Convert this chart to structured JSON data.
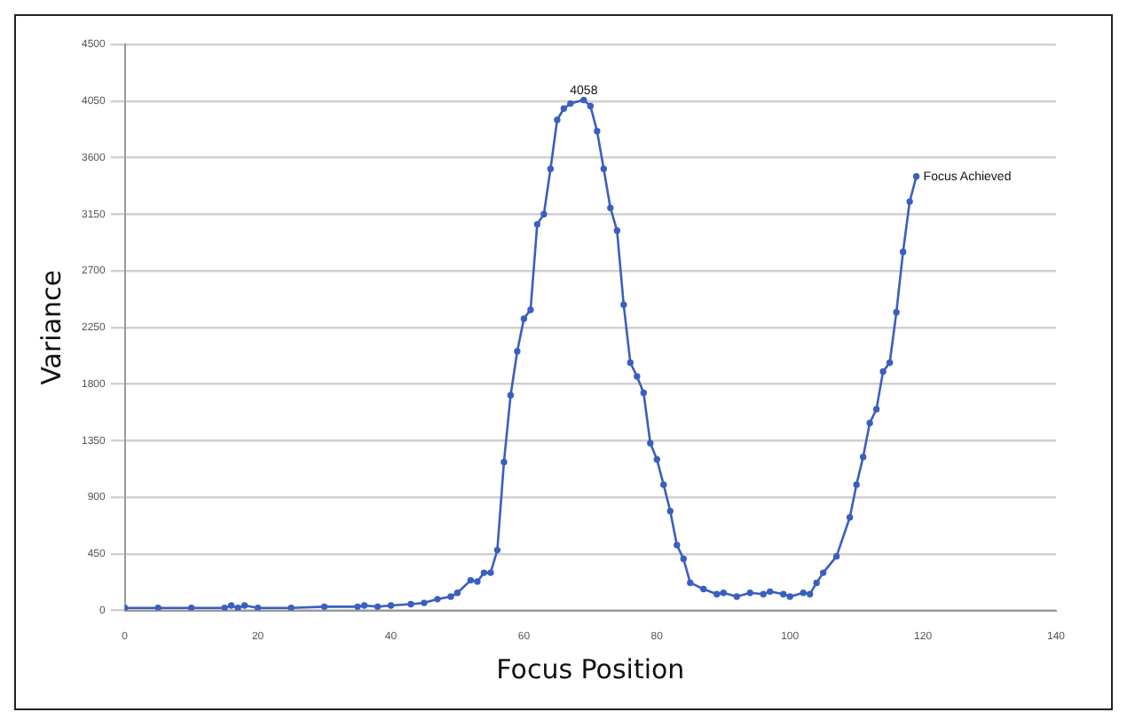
{
  "chart_data": {
    "type": "line",
    "xlabel": "Focus Position",
    "ylabel": "Variance",
    "xlim": [
      0,
      140
    ],
    "xticks": [
      0,
      20,
      40,
      60,
      80,
      100,
      120,
      140
    ],
    "ylim": [
      0,
      4500
    ],
    "yticks": [
      0,
      450,
      900,
      1350,
      1800,
      2250,
      2700,
      3150,
      3600,
      4050,
      4500
    ],
    "grid": "y",
    "marker": "circle",
    "line_style": "solid",
    "x": [
      0,
      5,
      10,
      15,
      16,
      17,
      18,
      20,
      25,
      30,
      35,
      36,
      38,
      40,
      43,
      45,
      47,
      49,
      50,
      52,
      53,
      54,
      55,
      56,
      57,
      58,
      59,
      60,
      61,
      62,
      63,
      64,
      65,
      66,
      67,
      69,
      70,
      71,
      72,
      73,
      74,
      75,
      76,
      77,
      78,
      79,
      80,
      81,
      82,
      83,
      84,
      85,
      87,
      89,
      90,
      92,
      94,
      96,
      97,
      99,
      100,
      102,
      103,
      104,
      105,
      107,
      109,
      110,
      111,
      112,
      113,
      114,
      115,
      116,
      117,
      118,
      119
    ],
    "series": [
      {
        "color": "#3a5fc0",
        "values": [
          20,
          20,
          20,
          20,
          40,
          20,
          40,
          20,
          20,
          30,
          30,
          40,
          30,
          40,
          50,
          60,
          90,
          110,
          140,
          240,
          230,
          300,
          300,
          480,
          1180,
          1710,
          2060,
          2320,
          2390,
          3070,
          3150,
          3510,
          3900,
          3990,
          4030,
          4058,
          4010,
          3810,
          3510,
          3200,
          3020,
          2430,
          1970,
          1860,
          1730,
          1330,
          1200,
          1000,
          790,
          520,
          410,
          220,
          170,
          130,
          140,
          110,
          140,
          130,
          150,
          130,
          110,
          140,
          130,
          220,
          300,
          430,
          740,
          1000,
          1220,
          1490,
          1600,
          1900,
          1970,
          2370,
          2850,
          3250,
          3450
        ]
      }
    ],
    "annotations": [
      {
        "text": "4058",
        "x": 69,
        "y": 4058
      },
      {
        "text": "Focus Achieved",
        "x": 119,
        "y": 3450
      }
    ]
  }
}
